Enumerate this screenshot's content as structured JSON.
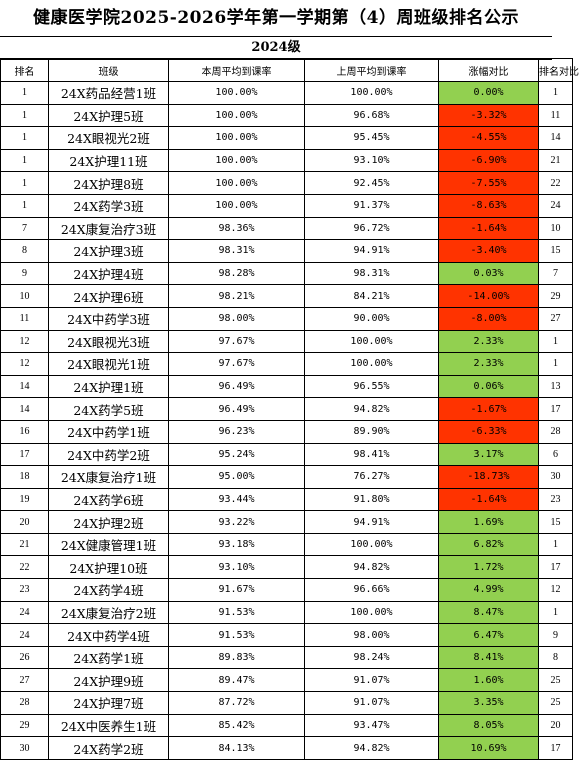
{
  "title": "健康医学院2025-2026学年第一学期第（4）周班级排名公示",
  "grade": "2024级",
  "colors": {
    "increase": "#92d050",
    "decrease": "#ff3300"
  },
  "headers": [
    "排名",
    "班级",
    "本周平均到课率",
    "上周平均到课率",
    "涨幅对比",
    "排名对比"
  ],
  "rows": [
    {
      "rank": "1",
      "class": "24X药品经营1班",
      "current": "100.00%",
      "previous": "100.00%",
      "change": "0.00%",
      "trend": "up",
      "rank_compare": "1"
    },
    {
      "rank": "1",
      "class": "24X护理5班",
      "current": "100.00%",
      "previous": "96.68%",
      "change": "-3.32%",
      "trend": "down",
      "rank_compare": "11"
    },
    {
      "rank": "1",
      "class": "24X眼视光2班",
      "current": "100.00%",
      "previous": "95.45%",
      "change": "-4.55%",
      "trend": "down",
      "rank_compare": "14"
    },
    {
      "rank": "1",
      "class": "24X护理11班",
      "current": "100.00%",
      "previous": "93.10%",
      "change": "-6.90%",
      "trend": "down",
      "rank_compare": "21"
    },
    {
      "rank": "1",
      "class": "24X护理8班",
      "current": "100.00%",
      "previous": "92.45%",
      "change": "-7.55%",
      "trend": "down",
      "rank_compare": "22"
    },
    {
      "rank": "1",
      "class": "24X药学3班",
      "current": "100.00%",
      "previous": "91.37%",
      "change": "-8.63%",
      "trend": "down",
      "rank_compare": "24"
    },
    {
      "rank": "7",
      "class": "24X康复治疗3班",
      "current": "98.36%",
      "previous": "96.72%",
      "change": "-1.64%",
      "trend": "down",
      "rank_compare": "10"
    },
    {
      "rank": "8",
      "class": "24X护理3班",
      "current": "98.31%",
      "previous": "94.91%",
      "change": "-3.40%",
      "trend": "down",
      "rank_compare": "15"
    },
    {
      "rank": "9",
      "class": "24X护理4班",
      "current": "98.28%",
      "previous": "98.31%",
      "change": "0.03%",
      "trend": "up",
      "rank_compare": "7"
    },
    {
      "rank": "10",
      "class": "24X护理6班",
      "current": "98.21%",
      "previous": "84.21%",
      "change": "-14.00%",
      "trend": "down",
      "rank_compare": "29"
    },
    {
      "rank": "11",
      "class": "24X中药学3班",
      "current": "98.00%",
      "previous": "90.00%",
      "change": "-8.00%",
      "trend": "down",
      "rank_compare": "27"
    },
    {
      "rank": "12",
      "class": "24X眼视光3班",
      "current": "97.67%",
      "previous": "100.00%",
      "change": "2.33%",
      "trend": "up",
      "rank_compare": "1"
    },
    {
      "rank": "12",
      "class": "24X眼视光1班",
      "current": "97.67%",
      "previous": "100.00%",
      "change": "2.33%",
      "trend": "up",
      "rank_compare": "1"
    },
    {
      "rank": "14",
      "class": "24X护理1班",
      "current": "96.49%",
      "previous": "96.55%",
      "change": "0.06%",
      "trend": "up",
      "rank_compare": "13"
    },
    {
      "rank": "14",
      "class": "24X药学5班",
      "current": "96.49%",
      "previous": "94.82%",
      "change": "-1.67%",
      "trend": "down",
      "rank_compare": "17"
    },
    {
      "rank": "16",
      "class": "24X中药学1班",
      "current": "96.23%",
      "previous": "89.90%",
      "change": "-6.33%",
      "trend": "down",
      "rank_compare": "28"
    },
    {
      "rank": "17",
      "class": "24X中药学2班",
      "current": "95.24%",
      "previous": "98.41%",
      "change": "3.17%",
      "trend": "up",
      "rank_compare": "6"
    },
    {
      "rank": "18",
      "class": "24X康复治疗1班",
      "current": "95.00%",
      "previous": "76.27%",
      "change": "-18.73%",
      "trend": "down",
      "rank_compare": "30"
    },
    {
      "rank": "19",
      "class": "24X药学6班",
      "current": "93.44%",
      "previous": "91.80%",
      "change": "-1.64%",
      "trend": "down",
      "rank_compare": "23"
    },
    {
      "rank": "20",
      "class": "24X护理2班",
      "current": "93.22%",
      "previous": "94.91%",
      "change": "1.69%",
      "trend": "up",
      "rank_compare": "15"
    },
    {
      "rank": "21",
      "class": "24X健康管理1班",
      "current": "93.18%",
      "previous": "100.00%",
      "change": "6.82%",
      "trend": "up",
      "rank_compare": "1"
    },
    {
      "rank": "22",
      "class": "24X护理10班",
      "current": "93.10%",
      "previous": "94.82%",
      "change": "1.72%",
      "trend": "up",
      "rank_compare": "17"
    },
    {
      "rank": "23",
      "class": "24X药学4班",
      "current": "91.67%",
      "previous": "96.66%",
      "change": "4.99%",
      "trend": "up",
      "rank_compare": "12"
    },
    {
      "rank": "24",
      "class": "24X康复治疗2班",
      "current": "91.53%",
      "previous": "100.00%",
      "change": "8.47%",
      "trend": "up",
      "rank_compare": "1"
    },
    {
      "rank": "24",
      "class": "24X中药学4班",
      "current": "91.53%",
      "previous": "98.00%",
      "change": "6.47%",
      "trend": "up",
      "rank_compare": "9"
    },
    {
      "rank": "26",
      "class": "24X药学1班",
      "current": "89.83%",
      "previous": "98.24%",
      "change": "8.41%",
      "trend": "up",
      "rank_compare": "8"
    },
    {
      "rank": "27",
      "class": "24X护理9班",
      "current": "89.47%",
      "previous": "91.07%",
      "change": "1.60%",
      "trend": "up",
      "rank_compare": "25"
    },
    {
      "rank": "28",
      "class": "24X护理7班",
      "current": "87.72%",
      "previous": "91.07%",
      "change": "3.35%",
      "trend": "up",
      "rank_compare": "25"
    },
    {
      "rank": "29",
      "class": "24X中医养生1班",
      "current": "85.42%",
      "previous": "93.47%",
      "change": "8.05%",
      "trend": "up",
      "rank_compare": "20"
    },
    {
      "rank": "30",
      "class": "24X药学2班",
      "current": "84.13%",
      "previous": "94.82%",
      "change": "10.69%",
      "trend": "up",
      "rank_compare": "17"
    }
  ]
}
